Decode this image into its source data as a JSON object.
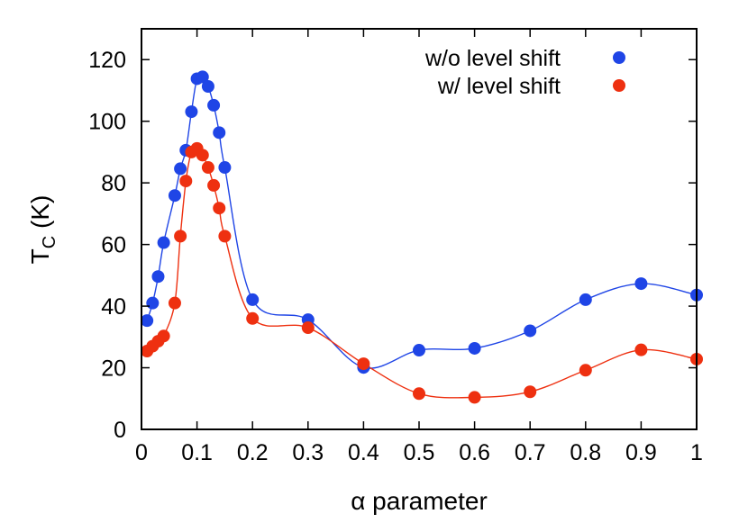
{
  "chart_data": {
    "type": "scatter",
    "title": "",
    "xlabel": "α parameter",
    "ylabel_main": "T",
    "ylabel_sub": "C",
    "ylabel_suffix": " (K)",
    "xlim": [
      0,
      1
    ],
    "ylim": [
      0,
      130
    ],
    "xticks": [
      0,
      0.1,
      0.2,
      0.3,
      0.4,
      0.5,
      0.6,
      0.7,
      0.8,
      0.9,
      1
    ],
    "xtick_labels": [
      "0",
      "0.1",
      "0.2",
      "0.3",
      "0.4",
      "0.5",
      "0.6",
      "0.7",
      "0.8",
      "0.9",
      "1"
    ],
    "yticks": [
      0,
      20,
      40,
      60,
      80,
      100,
      120
    ],
    "ytick_labels": [
      "0",
      "20",
      "40",
      "60",
      "80",
      "100",
      "120"
    ],
    "grid": false,
    "legend_position": "top-right",
    "series": [
      {
        "name": "w/o level shift",
        "color": "#1f45e6",
        "x": [
          0.01,
          0.02,
          0.03,
          0.04,
          0.06,
          0.07,
          0.08,
          0.09,
          0.1,
          0.11,
          0.12,
          0.13,
          0.14,
          0.15,
          0.2,
          0.3,
          0.4,
          0.5,
          0.6,
          0.7,
          0.8,
          0.9,
          1.0
        ],
        "y": [
          35.3,
          41.0,
          49.6,
          60.6,
          75.9,
          84.6,
          90.6,
          103.1,
          113.8,
          114.4,
          111.3,
          105.2,
          96.3,
          85.0,
          42.1,
          35.6,
          20.1,
          25.7,
          26.3,
          32.0,
          42.1,
          47.3,
          43.6
        ]
      },
      {
        "name": "w/ level shift",
        "color": "#ee3010",
        "x": [
          0.01,
          0.02,
          0.03,
          0.04,
          0.06,
          0.07,
          0.08,
          0.09,
          0.1,
          0.11,
          0.12,
          0.13,
          0.14,
          0.15,
          0.2,
          0.3,
          0.4,
          0.5,
          0.6,
          0.7,
          0.8,
          0.9,
          1.0
        ],
        "y": [
          25.4,
          27.0,
          28.6,
          30.3,
          41.0,
          62.7,
          80.6,
          90.0,
          91.2,
          89.0,
          85.0,
          79.2,
          71.8,
          62.7,
          36.0,
          33.0,
          21.3,
          11.6,
          10.4,
          12.2,
          19.2,
          25.8,
          22.8
        ]
      }
    ]
  }
}
